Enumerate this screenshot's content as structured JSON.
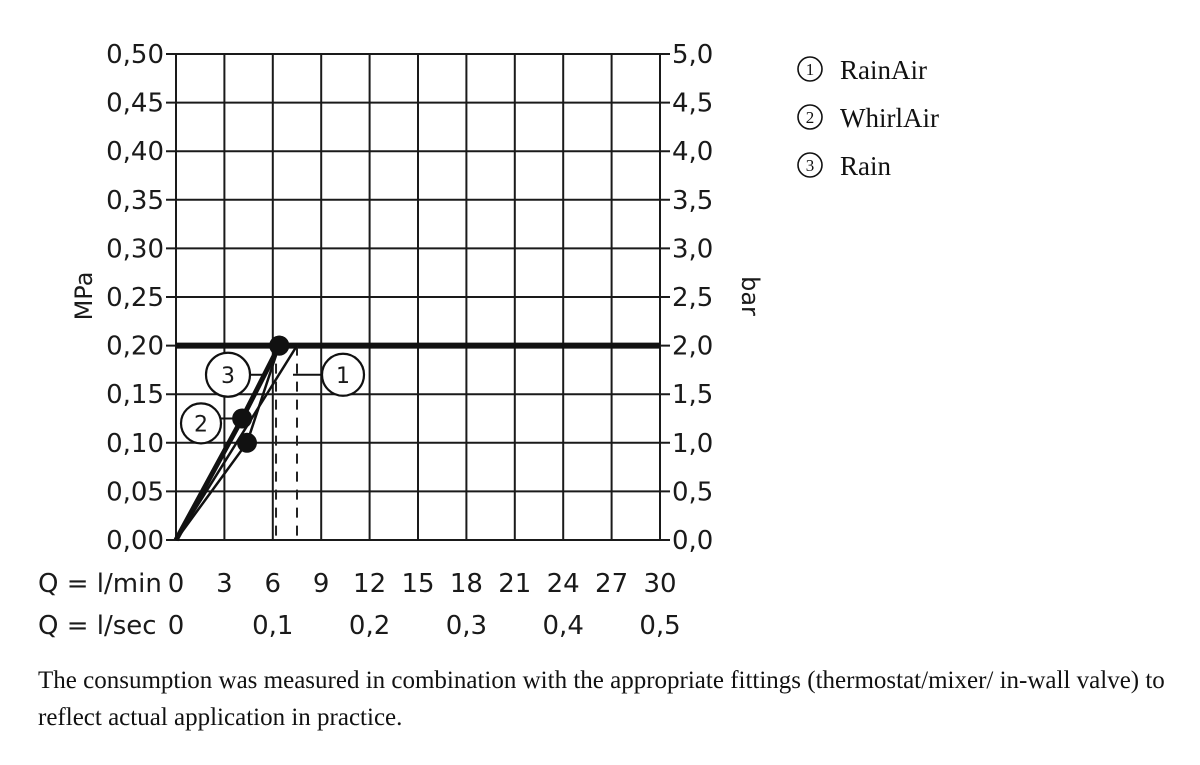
{
  "chart_data": {
    "type": "line",
    "title": "",
    "ylabel_left": "MPa",
    "ylabel_right": "bar",
    "x_row1_label": "Q = l/min",
    "x_row2_label": "Q = l/sec",
    "xlim": [
      0,
      30
    ],
    "ylim": [
      0,
      0.5
    ],
    "x_ticks_lmin": [
      "0",
      "3",
      "6",
      "9",
      "12",
      "15",
      "18",
      "21",
      "24",
      "27",
      "30"
    ],
    "x_ticks_lsec": [
      "0",
      "0,1",
      "0,2",
      "0,3",
      "0,4",
      "0,5"
    ],
    "x_ticks_lsec_values": [
      0,
      6,
      12,
      18,
      24,
      30
    ],
    "y_ticks_mpa": [
      "0,00",
      "0,05",
      "0,10",
      "0,15",
      "0,20",
      "0,25",
      "0,30",
      "0,35",
      "0,40",
      "0,45",
      "0,50"
    ],
    "y_ticks_bar": [
      "0,0",
      "0,5",
      "1,0",
      "1,5",
      "2,0",
      "2,5",
      "3,0",
      "3,5",
      "4,0",
      "4,5",
      "5,0"
    ],
    "grid": true,
    "reference_line": {
      "y": 0.2
    },
    "series": [
      {
        "id": "1",
        "name": "RainAir",
        "x": [
          0,
          7.5
        ],
        "y": [
          0,
          0.2
        ],
        "marker_label": "1"
      },
      {
        "id": "2",
        "name": "WhirlAir",
        "x": [
          0,
          4.1,
          6.4
        ],
        "y": [
          0,
          0.125,
          0.2
        ],
        "marker_label": "2",
        "marker_x": 4.1,
        "marker_y": 0.125
      },
      {
        "id": "3",
        "name": "Rain",
        "x": [
          0,
          4.4,
          6.4
        ],
        "y": [
          0,
          0.1,
          0.2
        ],
        "marker_label": "3",
        "marker_x": 6.4,
        "marker_y": 0.2
      }
    ],
    "dashed_guides": [
      6.2,
      7.5
    ],
    "legend_position": "top-right",
    "legend": [
      {
        "num": "1",
        "label": "RainAir"
      },
      {
        "num": "2",
        "label": "WhirlAir"
      },
      {
        "num": "3",
        "label": "Rain"
      }
    ]
  },
  "note": "The consumption was measured in combination with the appropriate fittings (thermostat/mixer/ in-wall valve) to reflect actual application in practice."
}
